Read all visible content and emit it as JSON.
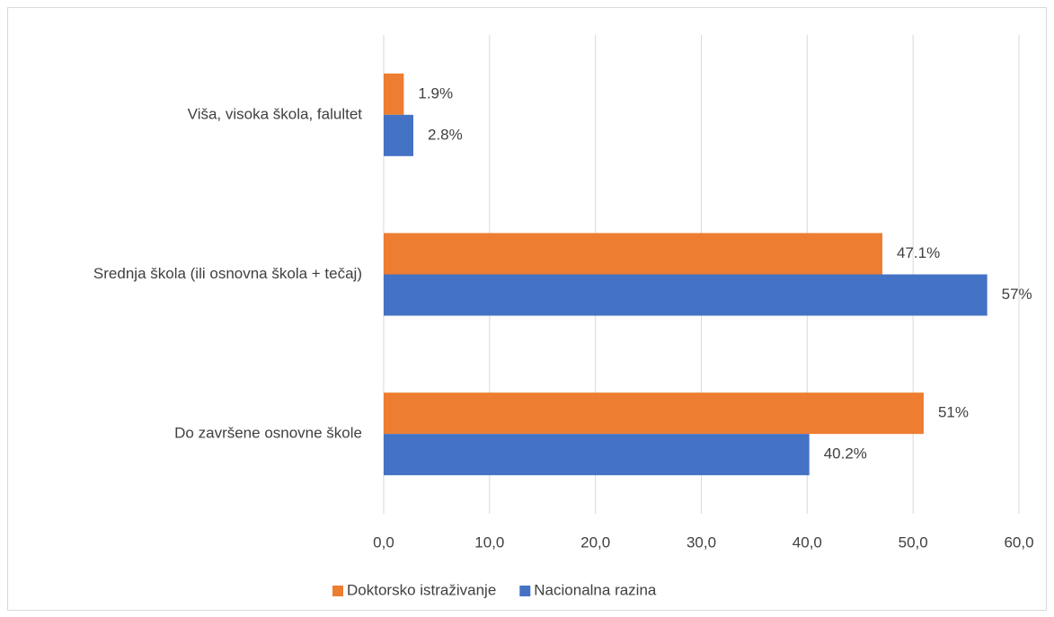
{
  "chart_data": {
    "type": "bar",
    "orientation": "horizontal",
    "categories": [
      "Viša, visoka škola, falultet",
      "Srednja škola (ili osnovna škola + tečaj)",
      "Do završene osnovne škole"
    ],
    "series": [
      {
        "name": "Doktorsko istraživanje",
        "color": "#ED7D31",
        "values": [
          1.9,
          47.1,
          51
        ],
        "value_labels": [
          "1.9%",
          "47.1%",
          "51%"
        ]
      },
      {
        "name": "Nacionalna razina",
        "color": "#4472C4",
        "values": [
          2.8,
          57,
          40.2
        ],
        "value_labels": [
          "2.8%",
          "57%",
          "40.2%"
        ]
      }
    ],
    "xlim": [
      0,
      60
    ],
    "xticks": [
      {
        "value": 0,
        "label": "0,0"
      },
      {
        "value": 10,
        "label": "10,0"
      },
      {
        "value": 20,
        "label": "20,0"
      },
      {
        "value": 30,
        "label": "30,0"
      },
      {
        "value": 40,
        "label": "40,0"
      },
      {
        "value": 50,
        "label": "50,0"
      },
      {
        "value": 60,
        "label": "60,0"
      }
    ],
    "grid": true,
    "legend": "bottom"
  }
}
